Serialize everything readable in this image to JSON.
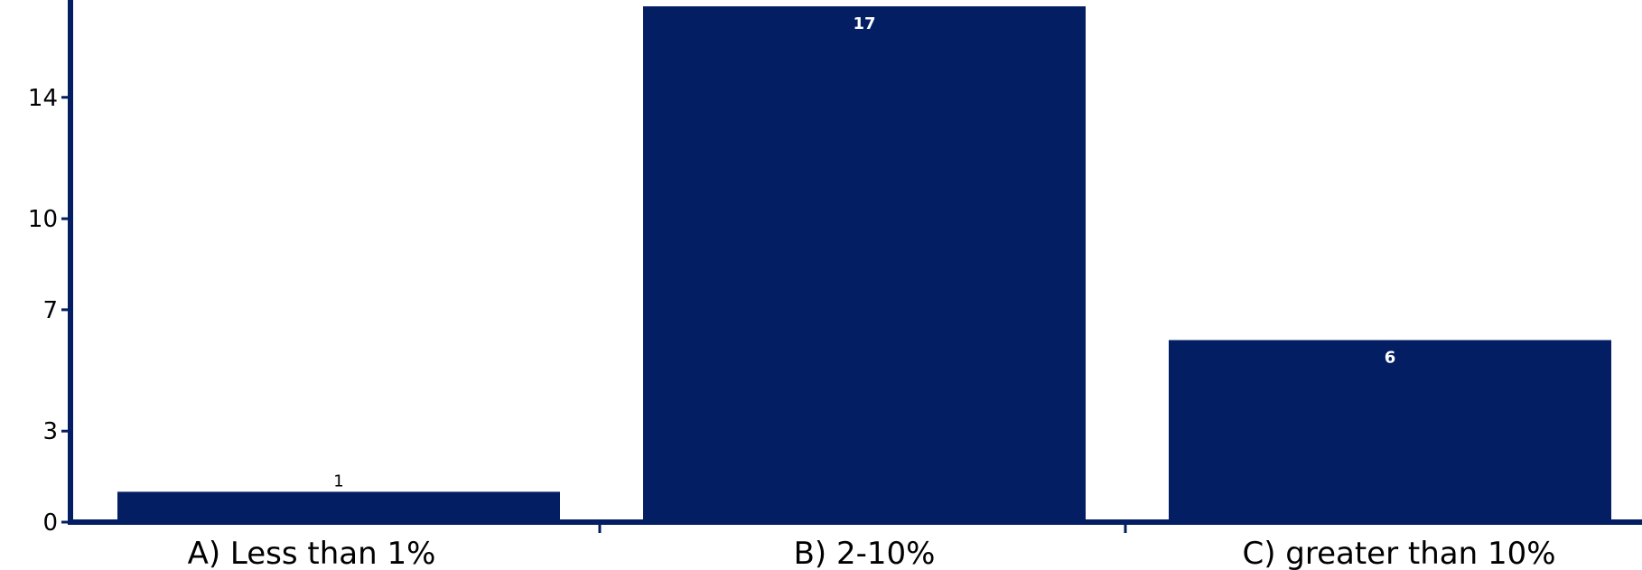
{
  "chart_data": {
    "type": "bar",
    "categories": [
      "A) Less than 1%",
      "B) 2-10%",
      "C) greater than 10%"
    ],
    "values": [
      1,
      17,
      6
    ],
    "data_labels": [
      "1",
      "17",
      "6"
    ],
    "yticks": [
      0,
      3,
      7,
      10,
      14
    ],
    "ytick_labels": [
      "0",
      "3",
      "7",
      "10",
      "14"
    ],
    "ylim": [
      0,
      17
    ],
    "xlabel": "",
    "ylabel": "",
    "title": "",
    "grid": false,
    "legend": "none"
  },
  "colors": {
    "bar": "#031e63",
    "axis": "#031e63",
    "background": "#ffffff"
  }
}
